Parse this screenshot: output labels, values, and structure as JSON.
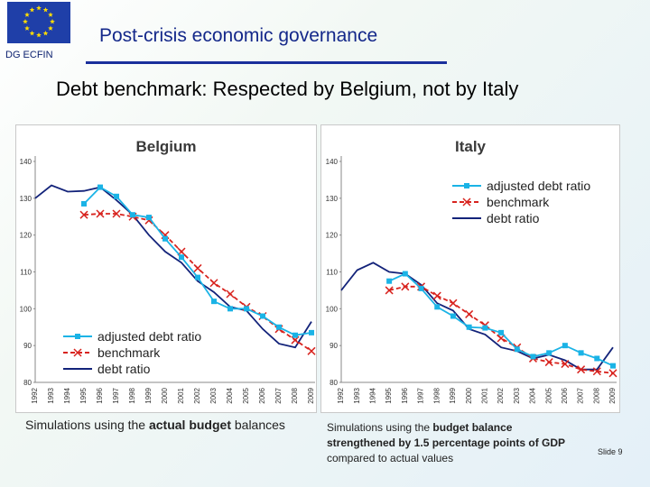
{
  "header": {
    "org": "DG ECFIN",
    "title": "Post-crisis economic governance"
  },
  "slide_title": "Debt benchmark: Respected by Belgium, not by Italy",
  "colors": {
    "adjusted": "#1ab3e6",
    "benchmark": "#d8231e",
    "debt": "#13237a",
    "flag": "#1f3fa8",
    "stars": "#ffdd00"
  },
  "legend_labels": [
    "adjusted debt ratio",
    "benchmark",
    "debt ratio"
  ],
  "chart_data": [
    {
      "type": "line",
      "title": "Belgium",
      "legend_position": "bottom-left",
      "x": [
        "1992",
        "1993",
        "1994",
        "1995",
        "1996",
        "1997",
        "1998",
        "1999",
        "2000",
        "2001",
        "2002",
        "2003",
        "2004",
        "2005",
        "2006",
        "2007",
        "2008",
        "2009"
      ],
      "ylim": [
        80,
        140
      ],
      "yticks": [
        80,
        90,
        100,
        110,
        120,
        130,
        140
      ],
      "grid": false,
      "series": [
        {
          "name": "adjusted debt ratio",
          "marker": "square",
          "values": [
            null,
            null,
            null,
            128.5,
            133.0,
            130.5,
            125.5,
            124.8,
            119.0,
            114.0,
            108.5,
            102.0,
            100.0,
            100.0,
            98.0,
            95.0,
            92.8,
            93.5
          ]
        },
        {
          "name": "benchmark",
          "marker": "x",
          "values": [
            null,
            null,
            null,
            125.5,
            125.8,
            125.8,
            125.0,
            124.0,
            120.0,
            115.5,
            111.0,
            107.0,
            104.0,
            100.5,
            98.0,
            94.5,
            91.5,
            88.5
          ]
        },
        {
          "name": "debt ratio",
          "marker": "none",
          "values": [
            130.0,
            133.5,
            131.8,
            132.0,
            133.0,
            129.5,
            125.5,
            120.0,
            115.5,
            112.5,
            107.5,
            104.5,
            100.5,
            99.5,
            94.5,
            90.5,
            89.5,
            96.5
          ]
        }
      ]
    },
    {
      "type": "line",
      "title": "Italy",
      "legend_position": "top-right",
      "x": [
        "1992",
        "1993",
        "1994",
        "1995",
        "1996",
        "1997",
        "1998",
        "1999",
        "2000",
        "2001",
        "2002",
        "2003",
        "2004",
        "2005",
        "2006",
        "2007",
        "2008",
        "2009"
      ],
      "ylim": [
        80,
        140
      ],
      "yticks": [
        80,
        90,
        100,
        110,
        120,
        130,
        140
      ],
      "grid": false,
      "series": [
        {
          "name": "adjusted debt ratio",
          "marker": "square",
          "values": [
            null,
            null,
            null,
            107.5,
            109.5,
            105.5,
            100.5,
            98.0,
            95.0,
            94.8,
            93.5,
            89.0,
            87.0,
            88.0,
            90.0,
            88.0,
            86.5,
            84.5
          ]
        },
        {
          "name": "benchmark",
          "marker": "x",
          "values": [
            null,
            null,
            null,
            105.0,
            106.0,
            106.0,
            103.5,
            101.5,
            98.5,
            95.5,
            92.0,
            89.5,
            86.5,
            85.5,
            85.0,
            83.5,
            83.0,
            82.5
          ]
        },
        {
          "name": "debt ratio",
          "marker": "none",
          "values": [
            105.0,
            110.5,
            112.5,
            110.0,
            109.5,
            106.5,
            101.5,
            99.5,
            94.5,
            93.0,
            89.5,
            88.5,
            86.5,
            87.5,
            86.0,
            83.5,
            83.5,
            89.5
          ]
        }
      ]
    }
  ],
  "captions": {
    "left": {
      "pre": "Simulations using the ",
      "bold": "actual budget",
      "post": " balances"
    },
    "right": {
      "pre": "Simulations using the ",
      "bold1": "budget balance",
      "bold2": "strengthened by 1.5 percentage points of GDP",
      "post": "compared to actual values"
    }
  },
  "slide_number": "Slide 9"
}
